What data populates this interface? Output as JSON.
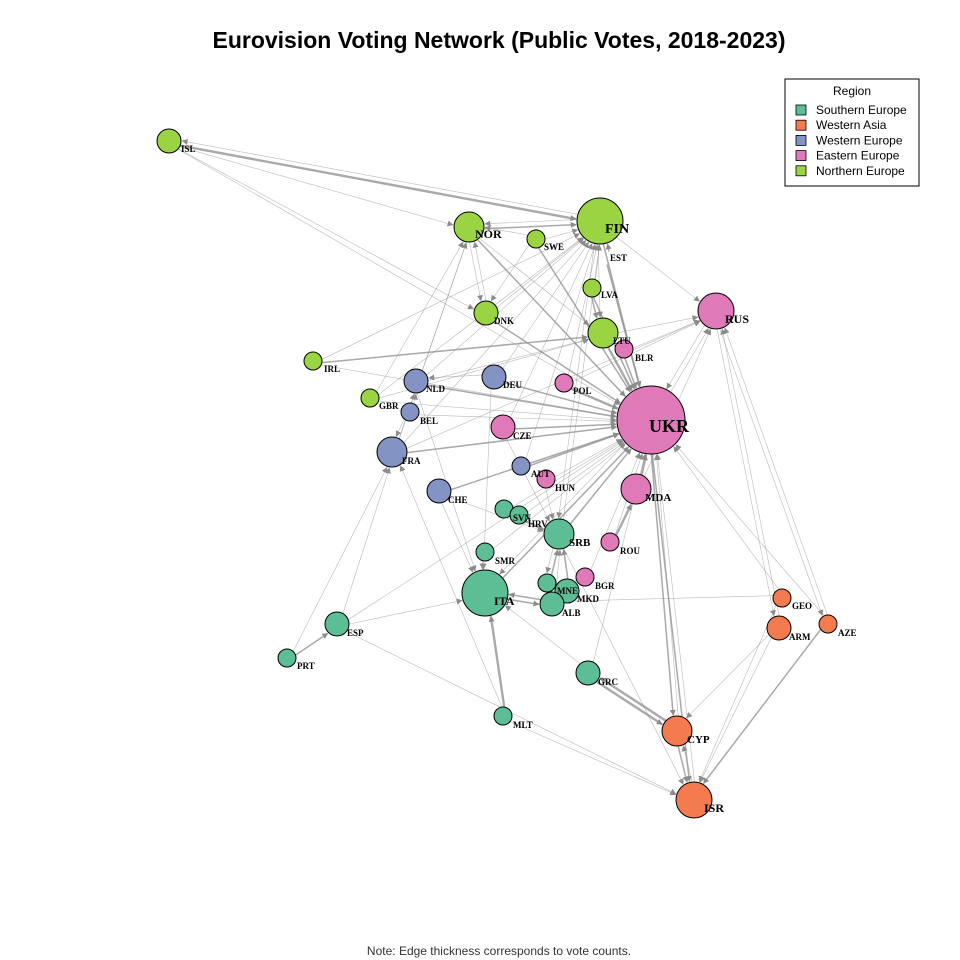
{
  "title": "Eurovision Voting Network (Public Votes, 2018-2023)",
  "caption": "Note: Edge thickness corresponds to vote counts.",
  "legend": {
    "title": "Region",
    "items": [
      {
        "label": "Southern Europe",
        "color": "#5dbe96"
      },
      {
        "label": "Western Asia",
        "color": "#f47a50"
      },
      {
        "label": "Western Europe",
        "color": "#8393c4"
      },
      {
        "label": "Eastern Europe",
        "color": "#e079b8"
      },
      {
        "label": "Northern Europe",
        "color": "#9ad442"
      }
    ]
  },
  "nodes": [
    {
      "id": "ISL",
      "region": "Northern Europe",
      "size": 2
    },
    {
      "id": "NOR",
      "region": "Northern Europe",
      "size": 3
    },
    {
      "id": "SWE",
      "region": "Northern Europe",
      "size": 1
    },
    {
      "id": "FIN",
      "region": "Northern Europe",
      "size": 5
    },
    {
      "id": "EST",
      "region": "Northern Europe",
      "size": 0
    },
    {
      "id": "LVA",
      "region": "Northern Europe",
      "size": 1
    },
    {
      "id": "LTU",
      "region": "Northern Europe",
      "size": 3
    },
    {
      "id": "DNK",
      "region": "Northern Europe",
      "size": 2
    },
    {
      "id": "IRL",
      "region": "Northern Europe",
      "size": 1
    },
    {
      "id": "GBR",
      "region": "Northern Europe",
      "size": 1
    },
    {
      "id": "RUS",
      "region": "Eastern Europe",
      "size": 4
    },
    {
      "id": "BLR",
      "region": "Eastern Europe",
      "size": 1
    },
    {
      "id": "POL",
      "region": "Eastern Europe",
      "size": 1
    },
    {
      "id": "UKR",
      "region": "Eastern Europe",
      "size": 8
    },
    {
      "id": "CZE",
      "region": "Eastern Europe",
      "size": 2
    },
    {
      "id": "HUN",
      "region": "Eastern Europe",
      "size": 1
    },
    {
      "id": "MDA",
      "region": "Eastern Europe",
      "size": 3
    },
    {
      "id": "ROU",
      "region": "Eastern Europe",
      "size": 1
    },
    {
      "id": "BGR",
      "region": "Eastern Europe",
      "size": 1
    },
    {
      "id": "NLD",
      "region": "Western Europe",
      "size": 2
    },
    {
      "id": "DEU",
      "region": "Western Europe",
      "size": 2
    },
    {
      "id": "BEL",
      "region": "Western Europe",
      "size": 1
    },
    {
      "id": "FRA",
      "region": "Western Europe",
      "size": 3
    },
    {
      "id": "AUT",
      "region": "Western Europe",
      "size": 1
    },
    {
      "id": "CHE",
      "region": "Western Europe",
      "size": 2
    },
    {
      "id": "SVN",
      "region": "Southern Europe",
      "size": 1
    },
    {
      "id": "HRV",
      "region": "Southern Europe",
      "size": 1
    },
    {
      "id": "SRB",
      "region": "Southern Europe",
      "size": 3
    },
    {
      "id": "SMR",
      "region": "Southern Europe",
      "size": 1
    },
    {
      "id": "ITA",
      "region": "Southern Europe",
      "size": 5
    },
    {
      "id": "MNE",
      "region": "Southern Europe",
      "size": 1
    },
    {
      "id": "MKD",
      "region": "Southern Europe",
      "size": 2
    },
    {
      "id": "ALB",
      "region": "Southern Europe",
      "size": 2
    },
    {
      "id": "ESP",
      "region": "Southern Europe",
      "size": 2
    },
    {
      "id": "PRT",
      "region": "Southern Europe",
      "size": 1
    },
    {
      "id": "GRC",
      "region": "Southern Europe",
      "size": 2
    },
    {
      "id": "MLT",
      "region": "Southern Europe",
      "size": 1
    },
    {
      "id": "GEO",
      "region": "Western Asia",
      "size": 1
    },
    {
      "id": "ARM",
      "region": "Western Asia",
      "size": 2
    },
    {
      "id": "AZE",
      "region": "Western Asia",
      "size": 1
    },
    {
      "id": "CYP",
      "region": "Western Asia",
      "size": 3
    },
    {
      "id": "ISR",
      "region": "Western Asia",
      "size": 4
    }
  ],
  "edges": [
    {
      "from": "ISL",
      "to": "FIN",
      "weight": 3
    },
    {
      "from": "FIN",
      "to": "ISL",
      "weight": 1
    },
    {
      "from": "ISL",
      "to": "UKR",
      "weight": 1
    },
    {
      "from": "ISL",
      "to": "DNK",
      "weight": 1
    },
    {
      "from": "ISL",
      "to": "NOR",
      "weight": 1
    },
    {
      "from": "NOR",
      "to": "FIN",
      "weight": 2
    },
    {
      "from": "FIN",
      "to": "NOR",
      "weight": 1
    },
    {
      "from": "SWE",
      "to": "NOR",
      "weight": 1
    },
    {
      "from": "SWE",
      "to": "FIN",
      "weight": 1
    },
    {
      "from": "NOR",
      "to": "UKR",
      "weight": 2
    },
    {
      "from": "NOR",
      "to": "LTU",
      "weight": 1
    },
    {
      "from": "NOR",
      "to": "DNK",
      "weight": 1
    },
    {
      "from": "SWE",
      "to": "UKR",
      "weight": 2
    },
    {
      "from": "SWE",
      "to": "DNK",
      "weight": 1
    },
    {
      "from": "EST",
      "to": "UKR",
      "weight": 2
    },
    {
      "from": "EST",
      "to": "FIN",
      "weight": 2
    },
    {
      "from": "FIN",
      "to": "RUS",
      "weight": 1
    },
    {
      "from": "FIN",
      "to": "UKR",
      "weight": 2
    },
    {
      "from": "FIN",
      "to": "LTU",
      "weight": 1
    },
    {
      "from": "LVA",
      "to": "UKR",
      "weight": 2
    },
    {
      "from": "LVA",
      "to": "LTU",
      "weight": 2
    },
    {
      "from": "LVA",
      "to": "FIN",
      "weight": 1
    },
    {
      "from": "LTU",
      "to": "UKR",
      "weight": 3
    },
    {
      "from": "LTU",
      "to": "RUS",
      "weight": 1
    },
    {
      "from": "DNK",
      "to": "UKR",
      "weight": 2
    },
    {
      "from": "DNK",
      "to": "NOR",
      "weight": 1
    },
    {
      "from": "DNK",
      "to": "FIN",
      "weight": 1
    },
    {
      "from": "IRL",
      "to": "LTU",
      "weight": 2
    },
    {
      "from": "IRL",
      "to": "UKR",
      "weight": 1
    },
    {
      "from": "IRL",
      "to": "FIN",
      "weight": 1
    },
    {
      "from": "GBR",
      "to": "FIN",
      "weight": 1
    },
    {
      "from": "GBR",
      "to": "LTU",
      "weight": 1
    },
    {
      "from": "GBR",
      "to": "UKR",
      "weight": 1
    },
    {
      "from": "GBR",
      "to": "NOR",
      "weight": 1
    },
    {
      "from": "NLD",
      "to": "UKR",
      "weight": 2
    },
    {
      "from": "NLD",
      "to": "FIN",
      "weight": 1
    },
    {
      "from": "NLD",
      "to": "LTU",
      "weight": 1
    },
    {
      "from": "NLD",
      "to": "NOR",
      "weight": 1
    },
    {
      "from": "BEL",
      "to": "NLD",
      "weight": 1
    },
    {
      "from": "BEL",
      "to": "UKR",
      "weight": 1
    },
    {
      "from": "BEL",
      "to": "FRA",
      "weight": 1
    },
    {
      "from": "DEU",
      "to": "UKR",
      "weight": 2
    },
    {
      "from": "DEU",
      "to": "NLD",
      "weight": 1
    },
    {
      "from": "DEU",
      "to": "FIN",
      "weight": 1
    },
    {
      "from": "FRA",
      "to": "UKR",
      "weight": 2
    },
    {
      "from": "FRA",
      "to": "NOR",
      "weight": 1
    },
    {
      "from": "FRA",
      "to": "FIN",
      "weight": 1
    },
    {
      "from": "FRA",
      "to": "RUS",
      "weight": 1
    },
    {
      "from": "FRA",
      "to": "NLD",
      "weight": 1
    },
    {
      "from": "POL",
      "to": "UKR",
      "weight": 3
    },
    {
      "from": "POL",
      "to": "RUS",
      "weight": 1
    },
    {
      "from": "POL",
      "to": "FIN",
      "weight": 1
    },
    {
      "from": "BLR",
      "to": "RUS",
      "weight": 1
    },
    {
      "from": "BLR",
      "to": "UKR",
      "weight": 2
    },
    {
      "from": "CZE",
      "to": "UKR",
      "weight": 2
    },
    {
      "from": "CZE",
      "to": "FIN",
      "weight": 1
    },
    {
      "from": "CZE",
      "to": "SRB",
      "weight": 1
    },
    {
      "from": "AUT",
      "to": "UKR",
      "weight": 2
    },
    {
      "from": "AUT",
      "to": "FIN",
      "weight": 1
    },
    {
      "from": "HUN",
      "to": "UKR",
      "weight": 1
    },
    {
      "from": "HUN",
      "to": "SRB",
      "weight": 1
    },
    {
      "from": "CHE",
      "to": "UKR",
      "weight": 2
    },
    {
      "from": "CHE",
      "to": "ITA",
      "weight": 1
    },
    {
      "from": "CHE",
      "to": "SRB",
      "weight": 1
    },
    {
      "from": "SVN",
      "to": "SRB",
      "weight": 2
    },
    {
      "from": "SVN",
      "to": "UKR",
      "weight": 1
    },
    {
      "from": "HRV",
      "to": "SRB",
      "weight": 2
    },
    {
      "from": "HRV",
      "to": "UKR",
      "weight": 1
    },
    {
      "from": "SRB",
      "to": "UKR",
      "weight": 2
    },
    {
      "from": "SRB",
      "to": "MNE",
      "weight": 1
    },
    {
      "from": "SRB",
      "to": "FIN",
      "weight": 1
    },
    {
      "from": "MDA",
      "to": "UKR",
      "weight": 3
    },
    {
      "from": "MDA",
      "to": "RUS",
      "weight": 1
    },
    {
      "from": "ROU",
      "to": "MDA",
      "weight": 3
    },
    {
      "from": "ROU",
      "to": "UKR",
      "weight": 1
    },
    {
      "from": "SMR",
      "to": "ITA",
      "weight": 1
    },
    {
      "from": "SMR",
      "to": "UKR",
      "weight": 1
    },
    {
      "from": "ITA",
      "to": "UKR",
      "weight": 2
    },
    {
      "from": "ITA",
      "to": "ALB",
      "weight": 2
    },
    {
      "from": "ALB",
      "to": "ITA",
      "weight": 2
    },
    {
      "from": "MNE",
      "to": "SRB",
      "weight": 2
    },
    {
      "from": "MKD",
      "to": "SRB",
      "weight": 2
    },
    {
      "from": "MKD",
      "to": "ALB",
      "weight": 2
    },
    {
      "from": "BGR",
      "to": "UKR",
      "weight": 1
    },
    {
      "from": "BGR",
      "to": "MKD",
      "weight": 1
    },
    {
      "from": "ALB",
      "to": "SRB",
      "weight": 1
    },
    {
      "from": "ESP",
      "to": "UKR",
      "weight": 1
    },
    {
      "from": "ESP",
      "to": "FRA",
      "weight": 1
    },
    {
      "from": "ESP",
      "to": "ITA",
      "weight": 1
    },
    {
      "from": "PRT",
      "to": "ESP",
      "weight": 2
    },
    {
      "from": "PRT",
      "to": "FRA",
      "weight": 1
    },
    {
      "from": "GRC",
      "to": "CYP",
      "weight": 3
    },
    {
      "from": "GRC",
      "to": "UKR",
      "weight": 1
    },
    {
      "from": "GRC",
      "to": "ITA",
      "weight": 1
    },
    {
      "from": "CYP",
      "to": "GRC",
      "weight": 3
    },
    {
      "from": "CYP",
      "to": "UKR",
      "weight": 1
    },
    {
      "from": "MLT",
      "to": "ITA",
      "weight": 3
    },
    {
      "from": "MLT",
      "to": "ISR",
      "weight": 1
    },
    {
      "from": "MLT",
      "to": "FRA",
      "weight": 1
    },
    {
      "from": "GEO",
      "to": "UKR",
      "weight": 1
    },
    {
      "from": "GEO",
      "to": "ISR",
      "weight": 1
    },
    {
      "from": "GEO",
      "to": "ALB",
      "weight": 1
    },
    {
      "from": "ARM",
      "to": "ISR",
      "weight": 1
    },
    {
      "from": "ARM",
      "to": "RUS",
      "weight": 1
    },
    {
      "from": "ARM",
      "to": "CYP",
      "weight": 1
    },
    {
      "from": "AZE",
      "to": "ISR",
      "weight": 2
    },
    {
      "from": "AZE",
      "to": "RUS",
      "weight": 1
    },
    {
      "from": "AZE",
      "to": "UKR",
      "weight": 1
    },
    {
      "from": "RUS",
      "to": "AZE",
      "weight": 1
    },
    {
      "from": "RUS",
      "to": "ARM",
      "weight": 1
    },
    {
      "from": "UKR",
      "to": "CYP",
      "weight": 2
    },
    {
      "from": "UKR",
      "to": "ISR",
      "weight": 2
    },
    {
      "from": "UKR",
      "to": "RUS",
      "weight": 1
    },
    {
      "from": "RUS",
      "to": "UKR",
      "weight": 1
    },
    {
      "from": "ISR",
      "to": "CYP",
      "weight": 1
    },
    {
      "from": "CYP",
      "to": "ISR",
      "weight": 2
    },
    {
      "from": "ISR",
      "to": "UKR",
      "weight": 1
    },
    {
      "from": "SRB",
      "to": "ISR",
      "weight": 1
    },
    {
      "from": "ESP",
      "to": "ISR",
      "weight": 1
    },
    {
      "from": "UKR",
      "to": "ITA",
      "weight": 1
    },
    {
      "from": "FIN",
      "to": "SRB",
      "weight": 1
    },
    {
      "from": "DEU",
      "to": "ITA",
      "weight": 1
    },
    {
      "from": "NLD",
      "to": "ITA",
      "weight": 1
    }
  ]
}
